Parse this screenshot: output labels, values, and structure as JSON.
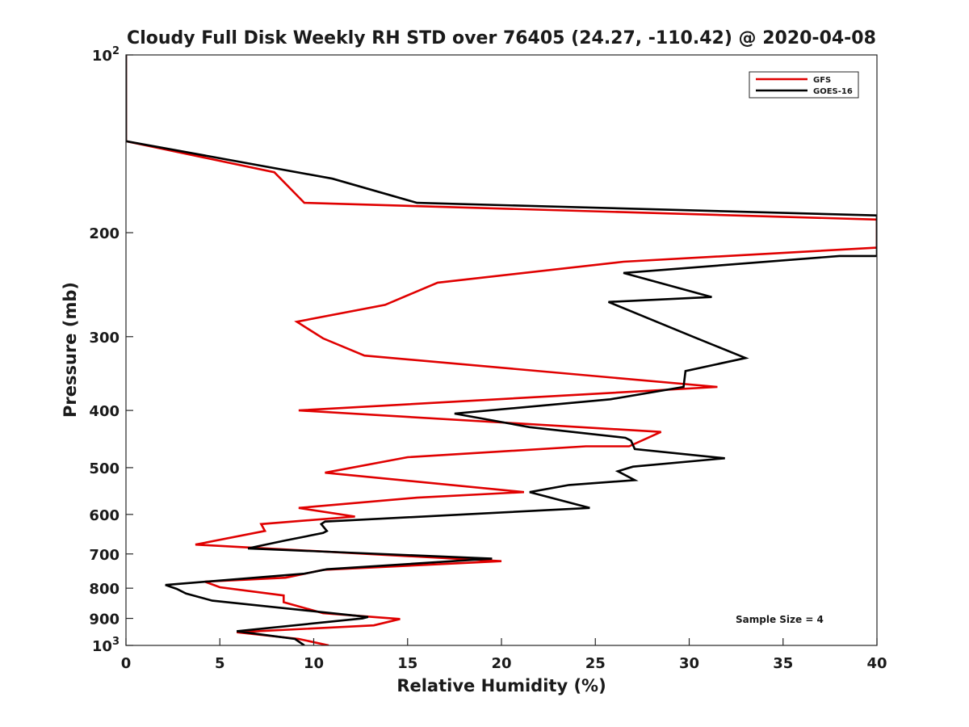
{
  "chart_data": {
    "type": "line",
    "title": "Cloudy Full Disk Weekly RH STD over 76405 (24.27, -110.42) @ 2020-04-08",
    "xlabel": "Relative Humidity (%)",
    "ylabel": "Pressure (mb)",
    "xlim": [
      0,
      40
    ],
    "ylim": [
      100,
      1000
    ],
    "y_scale": "log",
    "y_reversed": true,
    "x_ticks": [
      "0",
      "5",
      "10",
      "15",
      "20",
      "25",
      "30",
      "35",
      "40"
    ],
    "x_tick_values": [
      0,
      5,
      10,
      15,
      20,
      25,
      30,
      35,
      40
    ],
    "y_ticks": [
      {
        "value": 100,
        "base": "10",
        "exp": "2"
      },
      {
        "value": 200,
        "label": "200"
      },
      {
        "value": 300,
        "label": "300"
      },
      {
        "value": 400,
        "label": "400"
      },
      {
        "value": 500,
        "label": "500"
      },
      {
        "value": 600,
        "label": "600"
      },
      {
        "value": 700,
        "label": "700"
      },
      {
        "value": 800,
        "label": "800"
      },
      {
        "value": 900,
        "label": "900"
      },
      {
        "value": 1000,
        "base": "10",
        "exp": "3"
      }
    ],
    "grid": false,
    "legend_position": "top-right",
    "annotation": "Sample Size = 4",
    "series": [
      {
        "name": "GFS",
        "color": "#e00000",
        "x": [
          0,
          0,
          7.9,
          9.5,
          40,
          40,
          26.5,
          16.6,
          13.8,
          9.1,
          10.5,
          12.7,
          31.5,
          9.2,
          28.5,
          26.8,
          24.5,
          15,
          10.6,
          21.2,
          15.5,
          9.2,
          12.2,
          7.2,
          7.4,
          3.7,
          20,
          10.5,
          8.5,
          4.2,
          5,
          8.4,
          8.4,
          10.5,
          14.6,
          13.2,
          5.9,
          9.2,
          10.8
        ],
        "y": [
          100,
          140,
          158,
          178,
          190,
          212,
          224,
          243,
          265,
          283,
          302,
          323,
          365,
          400,
          435,
          460,
          460,
          480,
          510,
          550,
          562,
          585,
          605,
          623,
          640,
          675,
          720,
          745,
          768,
          780,
          797,
          823,
          845,
          882,
          902,
          925,
          950,
          975,
          1000
        ]
      },
      {
        "name": "GOES-16",
        "color": "#000000",
        "x": [
          0,
          0,
          11,
          15.5,
          40,
          40,
          38,
          26.5,
          31.2,
          25.7,
          30.2,
          33,
          29.8,
          29.7,
          25.8,
          17.5,
          21.5,
          26.6,
          26.9,
          27.1,
          31.9,
          27,
          26.2,
          27.1,
          23.6,
          21.5,
          24.7,
          10.6,
          10.4,
          10.7,
          10.5,
          8.4,
          6.5,
          19.5,
          10.7,
          9.5,
          2.1,
          2.7,
          3.2,
          4.6,
          12.9,
          12.6,
          5.9,
          9,
          9.5
        ],
        "y": [
          100,
          140,
          162,
          178,
          187,
          219,
          219,
          234,
          257,
          262,
          300,
          326,
          343,
          365,
          383,
          405,
          427,
          445,
          450,
          465,
          482,
          498,
          507,
          525,
          535,
          550,
          585,
          617,
          623,
          640,
          645,
          665,
          685,
          713,
          743,
          756,
          790,
          802,
          817,
          840,
          895,
          900,
          946,
          975,
          1000
        ]
      }
    ]
  }
}
